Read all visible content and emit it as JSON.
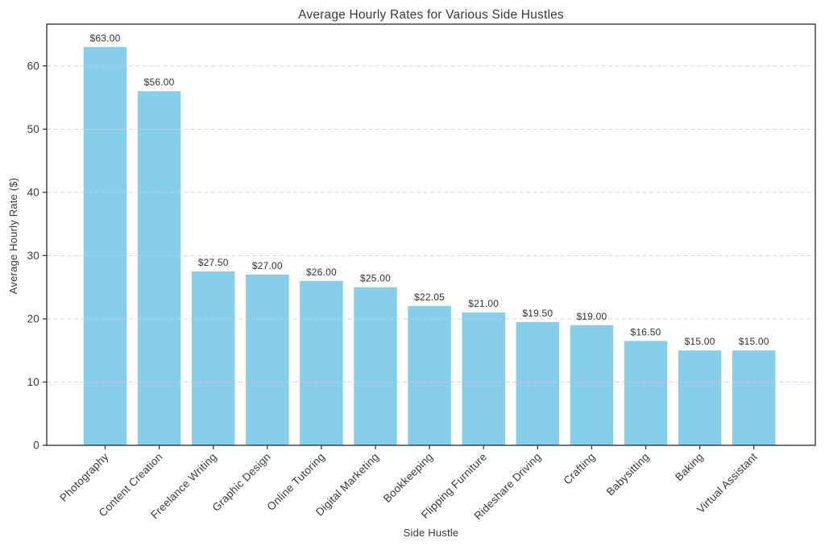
{
  "chart_data": {
    "type": "bar",
    "title": "Average Hourly Rates for Various Side Hustles",
    "xlabel": "Side Hustle",
    "ylabel": "Average Hourly Rate ($)",
    "categories": [
      "Photography",
      "Content Creation",
      "Freelance Writing",
      "Graphic Design",
      "Online Tutoring",
      "Digital Marketing",
      "Bookkeeping",
      "Flipping Furniture",
      "Rideshare Driving",
      "Crafting",
      "Babysitting",
      "Baking",
      "Virtual Assistant"
    ],
    "values": [
      63.0,
      56.0,
      27.5,
      27.0,
      26.0,
      25.0,
      22.05,
      21.0,
      19.5,
      19.0,
      16.5,
      15.0,
      15.0
    ],
    "bar_labels": [
      "$63.00",
      "$56.00",
      "$27.50",
      "$27.00",
      "$26.00",
      "$25.00",
      "$22.05",
      "$21.00",
      "$19.50",
      "$19.00",
      "$16.50",
      "$15.00",
      "$15.00"
    ],
    "yticks": [
      "0",
      "10",
      "20",
      "30",
      "40",
      "50",
      "60"
    ],
    "ytick_values": [
      0,
      10,
      20,
      30,
      40,
      50,
      60
    ],
    "ylim": [
      0,
      66.6
    ],
    "bar_color": "#87ceeb",
    "gridline_color": "#cccccc",
    "grid": "horizontal-dashed",
    "legend_position": "none",
    "xtick_rotation_degrees": 45
  }
}
